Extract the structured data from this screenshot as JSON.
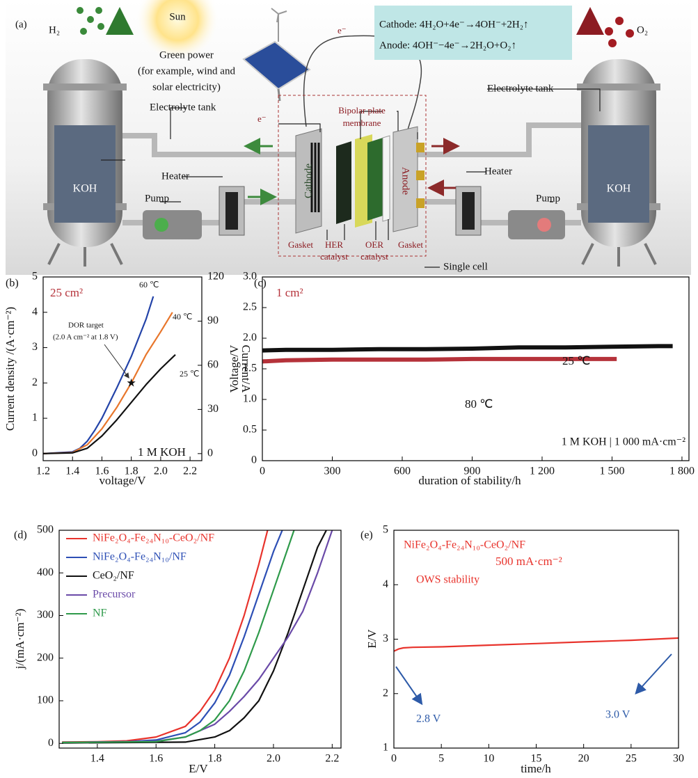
{
  "diagram": {
    "label": "(a)",
    "h2": "H₂",
    "o2": "O₂",
    "sun": "Sun",
    "green_power": [
      "Green power",
      "(for example, wind and",
      "solar electricity)"
    ],
    "tank_left": "Electrolyte tank",
    "tank_right": "Electrolyte tank",
    "koh_left": "KOH",
    "koh_right": "KOH",
    "pump_left": "Pump",
    "pump_right": "Pump",
    "heater_left": "Heater",
    "heater_right": "Heater",
    "cathode": "Cathode",
    "anode": "Anode",
    "bipolar": [
      "Bipolar plate",
      "membrane"
    ],
    "gasket_left": "Gasket",
    "gasket_right": "Gasket",
    "her": [
      "HER",
      "catalyst"
    ],
    "oer": [
      "OER",
      "catalyst"
    ],
    "single_cell": "Single cell",
    "electron_left": "e⁻",
    "electron_top": "e⁻",
    "equations": [
      "Cathode: 4H₂O+4e⁻→4OH⁻+2H₂↑",
      "Anode: 4OH⁻−4e⁻→2H₂O+O₂↑"
    ]
  },
  "chart_data": [
    {
      "type": "line",
      "label": "(b)",
      "xlabel": "voltage/V",
      "ylabel": "Current density /(A·cm⁻²)",
      "y2label": "Current/A",
      "xlim": [
        1.2,
        2.28
      ],
      "xticks": [
        1.2,
        1.4,
        1.6,
        1.8,
        {
          "value": 2,
          "label": "2.0"
        },
        2.2
      ],
      "ylim": [
        -0.2,
        5
      ],
      "yticks": [
        0,
        1,
        2,
        3,
        4,
        5
      ],
      "y2lim": [
        -4.8,
        120
      ],
      "y2ticks": [
        0,
        30,
        60,
        90,
        120
      ],
      "series": [
        {
          "name": "60 ℃",
          "color": "#2343a8",
          "x": [
            1.2,
            1.4,
            1.45,
            1.5,
            1.55,
            1.6,
            1.7,
            1.8,
            1.9,
            1.95
          ],
          "values": [
            0,
            0.05,
            0.15,
            0.35,
            0.65,
            1.0,
            1.85,
            2.75,
            3.8,
            4.45
          ]
        },
        {
          "name": "40 ℃",
          "color": "#e8762b",
          "x": [
            1.2,
            1.4,
            1.5,
            1.6,
            1.7,
            1.8,
            1.9,
            2.0,
            2.08
          ],
          "values": [
            0,
            0.03,
            0.25,
            0.7,
            1.3,
            2.0,
            2.8,
            3.45,
            4.0
          ]
        },
        {
          "name": "25 ℃",
          "color": "#111111",
          "x": [
            1.2,
            1.4,
            1.5,
            1.6,
            1.7,
            1.8,
            1.9,
            2.0,
            2.1
          ],
          "values": [
            0,
            0.02,
            0.15,
            0.5,
            0.95,
            1.45,
            1.95,
            2.4,
            2.8
          ]
        }
      ],
      "target": {
        "x": 1.8,
        "y": 2.0
      },
      "annotations": [
        {
          "text": "25 cm²",
          "color": "#b5323a"
        },
        {
          "text": "1 M KOH",
          "color": "#111111"
        },
        {
          "text": "DOR target",
          "color": "#111111"
        },
        {
          "text": "(2.0 A cm⁻² at 1.8 V)",
          "color": "#111111"
        }
      ]
    },
    {
      "type": "line",
      "label": "(c)",
      "xlabel": "duration of stability/h",
      "ylabel": "Voltage/V",
      "xlim": [
        0,
        1830
      ],
      "xticks": [
        0,
        300,
        600,
        900,
        {
          "value": 1200,
          "label": "1 200"
        },
        {
          "value": 1500,
          "label": "1 500"
        },
        {
          "value": 1800,
          "label": "1 800"
        }
      ],
      "ylim": [
        0,
        3
      ],
      "yticks": [
        0,
        0.5,
        {
          "value": 1,
          "label": "1.0"
        },
        1.5,
        {
          "value": 2,
          "label": "2.0"
        },
        2.5,
        {
          "value": 3,
          "label": "3.0"
        }
      ],
      "series": [
        {
          "name": "25 ℃",
          "color": "#111111",
          "x": [
            0,
            100,
            300,
            500,
            700,
            900,
            1100,
            1300,
            1500,
            1700,
            1760
          ],
          "values": [
            1.8,
            1.81,
            1.81,
            1.82,
            1.82,
            1.83,
            1.85,
            1.85,
            1.86,
            1.87,
            1.87
          ]
        },
        {
          "name": "80 ℃",
          "color": "#b5323a",
          "x": [
            0,
            100,
            300,
            500,
            700,
            900,
            1100,
            1300,
            1520
          ],
          "values": [
            1.62,
            1.64,
            1.65,
            1.65,
            1.65,
            1.66,
            1.66,
            1.66,
            1.66
          ]
        }
      ],
      "annotations": [
        {
          "text": "1 cm²",
          "color": "#b5323a"
        },
        {
          "text": "1 M KOH | 1 000 mA·cm⁻²",
          "color": "#111111"
        }
      ]
    },
    {
      "type": "line",
      "label": "(d)",
      "xlabel": "E/V",
      "ylabel": "j/(mA·cm⁻²)",
      "legend": "upper left",
      "xlim": [
        1.27,
        2.23
      ],
      "xticks": [
        1.4,
        1.6,
        1.8,
        {
          "value": 2,
          "label": "2.0"
        },
        2.2
      ],
      "ylim": [
        -11,
        500
      ],
      "yticks": [
        0,
        100,
        200,
        300,
        400,
        500
      ],
      "series": [
        {
          "name": "NiFe₂O₄-Fe₂₄N₁₀-CeO₂/NF",
          "color": "#e8332c",
          "x": [
            1.28,
            1.4,
            1.5,
            1.6,
            1.7,
            1.75,
            1.8,
            1.85,
            1.9,
            1.95,
            1.98
          ],
          "values": [
            3,
            4,
            6,
            15,
            40,
            75,
            125,
            200,
            300,
            420,
            500
          ]
        },
        {
          "name": "NiFe₂O₄-Fe₂₄N₁₀/NF",
          "color": "#2d4fb5",
          "x": [
            1.28,
            1.5,
            1.6,
            1.7,
            1.75,
            1.8,
            1.85,
            1.9,
            1.95,
            2.0,
            2.03
          ],
          "values": [
            2,
            4,
            8,
            25,
            50,
            95,
            160,
            250,
            350,
            450,
            500
          ]
        },
        {
          "name": "CeO₂/NF",
          "color": "#111111",
          "x": [
            1.28,
            1.7,
            1.8,
            1.85,
            1.9,
            1.95,
            2.0,
            2.05,
            2.1,
            2.15,
            2.18
          ],
          "values": [
            1,
            3,
            15,
            30,
            60,
            100,
            170,
            260,
            360,
            460,
            500
          ]
        },
        {
          "name": "Precursor",
          "color": "#6a4aa8",
          "x": [
            1.28,
            1.6,
            1.7,
            1.8,
            1.85,
            1.9,
            1.95,
            2.0,
            2.05,
            2.1,
            2.15,
            2.2
          ],
          "values": [
            2,
            5,
            15,
            45,
            75,
            110,
            150,
            200,
            250,
            310,
            400,
            500
          ]
        },
        {
          "name": "NF",
          "color": "#2e9a4a",
          "x": [
            1.28,
            1.6,
            1.7,
            1.75,
            1.8,
            1.85,
            1.9,
            1.95,
            2.0,
            2.05,
            2.07
          ],
          "values": [
            2,
            4,
            15,
            30,
            55,
            100,
            170,
            260,
            360,
            460,
            500
          ]
        }
      ]
    },
    {
      "type": "line",
      "label": "(e)",
      "xlabel": "time/h",
      "ylabel": "E/V",
      "legend": "upper left",
      "legend_swatch": false,
      "xlim": [
        0,
        30
      ],
      "xticks": [
        0,
        5,
        10,
        15,
        20,
        25,
        30
      ],
      "ylim": [
        1,
        5
      ],
      "yticks": [
        1,
        2,
        3,
        4,
        5
      ],
      "series": [
        {
          "name": "NiFe₂O₄-Fe₂₄N₁₀-CeO₂/NF",
          "color": "#e8332c",
          "x": [
            0,
            0.5,
            1,
            2,
            5,
            10,
            15,
            20,
            25,
            30
          ],
          "values": [
            2.78,
            2.82,
            2.84,
            2.85,
            2.86,
            2.89,
            2.92,
            2.95,
            2.98,
            3.02
          ]
        }
      ],
      "annotations": [
        {
          "text": "OWS stability",
          "color": "#e8332c"
        },
        {
          "text": "500 mA·cm⁻²",
          "color": "#e8332c"
        },
        {
          "text": "2.8 V",
          "color": "#2d5aa8"
        },
        {
          "text": "3.0 V",
          "color": "#2d5aa8"
        }
      ]
    }
  ]
}
